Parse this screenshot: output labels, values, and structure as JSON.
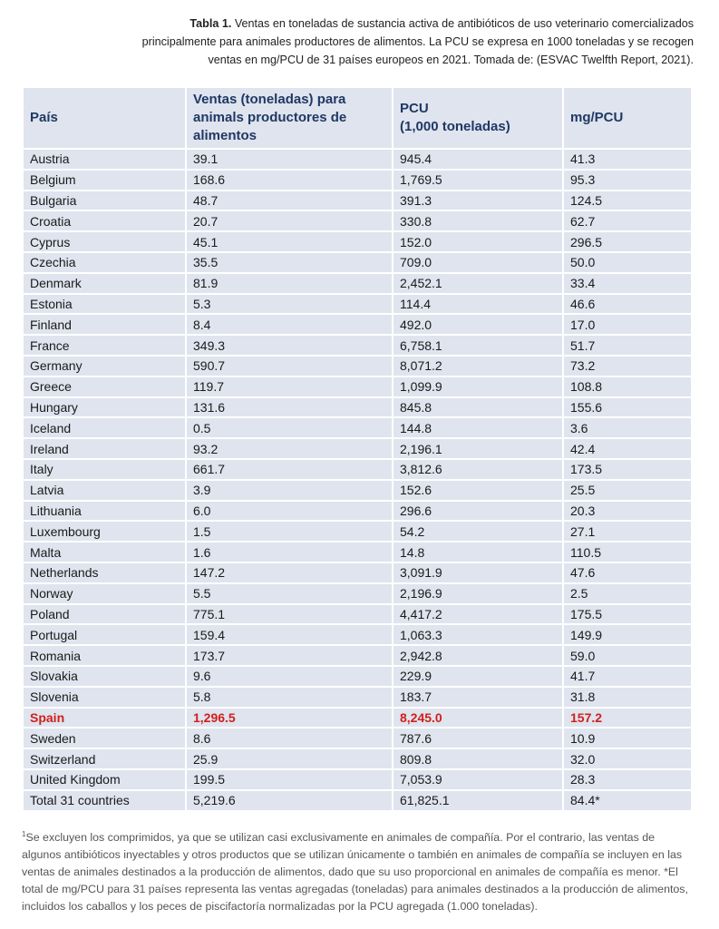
{
  "caption": {
    "label": "Tabla 1.",
    "text": "Ventas en toneladas de sustancia activa de antibióticos de uso veterinario comercializados principalmente para animales productores de alimentos. La PCU se expresa en 1000 toneladas y se recogen ventas en mg/PCU de 31 países europeos en 2021. Tomada de: (ESVAC Twelfth Report, 2021)."
  },
  "table": {
    "header": [
      [
        "País"
      ],
      [
        "Ventas (toneladas) para",
        "animals productores de",
        "alimentos"
      ],
      [
        "PCU",
        "(1,000 toneladas)"
      ],
      [
        "mg/PCU"
      ]
    ],
    "rows": [
      [
        "Austria",
        "39.1",
        "945.4",
        "41.3"
      ],
      [
        "Belgium",
        "168.6",
        "1,769.5",
        "95.3"
      ],
      [
        "Bulgaria",
        "48.7",
        "391.3",
        "124.5"
      ],
      [
        "Croatia",
        "20.7",
        "330.8",
        "62.7"
      ],
      [
        "Cyprus",
        "45.1",
        "152.0",
        "296.5"
      ],
      [
        "Czechia",
        "35.5",
        "709.0",
        "50.0"
      ],
      [
        "Denmark",
        "81.9",
        "2,452.1",
        "33.4"
      ],
      [
        "Estonia",
        "5.3",
        "114.4",
        "46.6"
      ],
      [
        "Finland",
        "8.4",
        "492.0",
        "17.0"
      ],
      [
        "France",
        "349.3",
        "6,758.1",
        "51.7"
      ],
      [
        "Germany",
        "590.7",
        "8,071.2",
        "73.2"
      ],
      [
        "Greece",
        "119.7",
        "1,099.9",
        "108.8"
      ],
      [
        "Hungary",
        "131.6",
        "845.8",
        "155.6"
      ],
      [
        "Iceland",
        "0.5",
        "144.8",
        "3.6"
      ],
      [
        "Ireland",
        "93.2",
        "2,196.1",
        "42.4"
      ],
      [
        "Italy",
        "661.7",
        "3,812.6",
        "173.5"
      ],
      [
        "Latvia",
        "3.9",
        "152.6",
        "25.5"
      ],
      [
        "Lithuania",
        "6.0",
        "296.6",
        "20.3"
      ],
      [
        "Luxembourg",
        "1.5",
        "54.2",
        "27.1"
      ],
      [
        "Malta",
        "1.6",
        "14.8",
        "110.5"
      ],
      [
        "Netherlands",
        "147.2",
        "3,091.9",
        "47.6"
      ],
      [
        "Norway",
        "5.5",
        "2,196.9",
        "2.5"
      ],
      [
        "Poland",
        "775.1",
        "4,417.2",
        "175.5"
      ],
      [
        "Portugal",
        "159.4",
        "1,063.3",
        "149.9"
      ],
      [
        "Romania",
        "173.7",
        "2,942.8",
        "59.0"
      ],
      [
        "Slovakia",
        "9.6",
        "229.9",
        "41.7"
      ],
      [
        "Slovenia",
        "5.8",
        "183.7",
        "31.8"
      ],
      [
        "Spain",
        "1,296.5",
        "8,245.0",
        "157.2"
      ],
      [
        "Sweden",
        "8.6",
        "787.6",
        "10.9"
      ],
      [
        "Switzerland",
        "25.9",
        "809.8",
        "32.0"
      ],
      [
        "United Kingdom",
        "199.5",
        "7,053.9",
        "28.3"
      ],
      [
        "Total 31 countries",
        "5,219.6",
        "61,825.1",
        "84.4*"
      ]
    ],
    "highlight": {
      "row": 27,
      "color": "#d0201c"
    }
  },
  "footnote": {
    "marker": "1",
    "text": "Se excluyen los comprimidos, ya que se utilizan casi exclusivamente en animales de compañía. Por el contrario, las ventas de algunos antibióticos inyectables y otros productos que se utilizan únicamente o también en animales de compañía se incluyen en las ventas de animales destinados a la producción de alimentos, dado que su uso proporcional en animales de compañía es menor. *El total de mg/PCU para 31 países representa las ventas agregadas (toneladas) para animales destinados a la producción de alimentos, incluidos los caballos y los peces de piscifactoría normalizadas por la PCU agregada (1.000 toneladas)."
  }
}
